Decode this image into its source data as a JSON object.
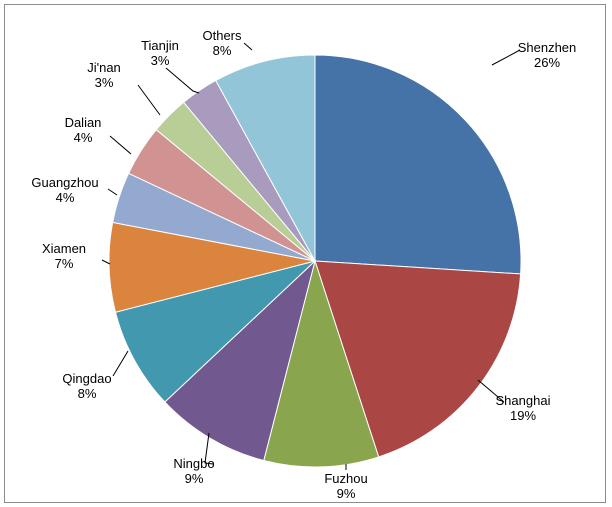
{
  "chart_data": {
    "type": "pie",
    "title": "",
    "categories": [
      "Shenzhen",
      "Shanghai",
      "Fuzhou",
      "Ningbo",
      "Qingdao",
      "Xiamen",
      "Guangzhou",
      "Dalian",
      "Ji'nan",
      "Tianjin",
      "Others"
    ],
    "values": [
      26,
      19,
      9,
      9,
      8,
      7,
      4,
      4,
      3,
      3,
      8
    ],
    "value_labels": [
      "26%",
      "19%",
      "9%",
      "9%",
      "8%",
      "7%",
      "4%",
      "4%",
      "3%",
      "3%",
      "8%"
    ],
    "start_angle_deg": 0,
    "direction": "clockwise",
    "legend": "none",
    "colors": [
      "#4572a7",
      "#aa4643",
      "#89a54e",
      "#71588f",
      "#4198af",
      "#db843d",
      "#93a9cf",
      "#d19392",
      "#b9cd96",
      "#a99bbd",
      "#92c5d7"
    ]
  }
}
